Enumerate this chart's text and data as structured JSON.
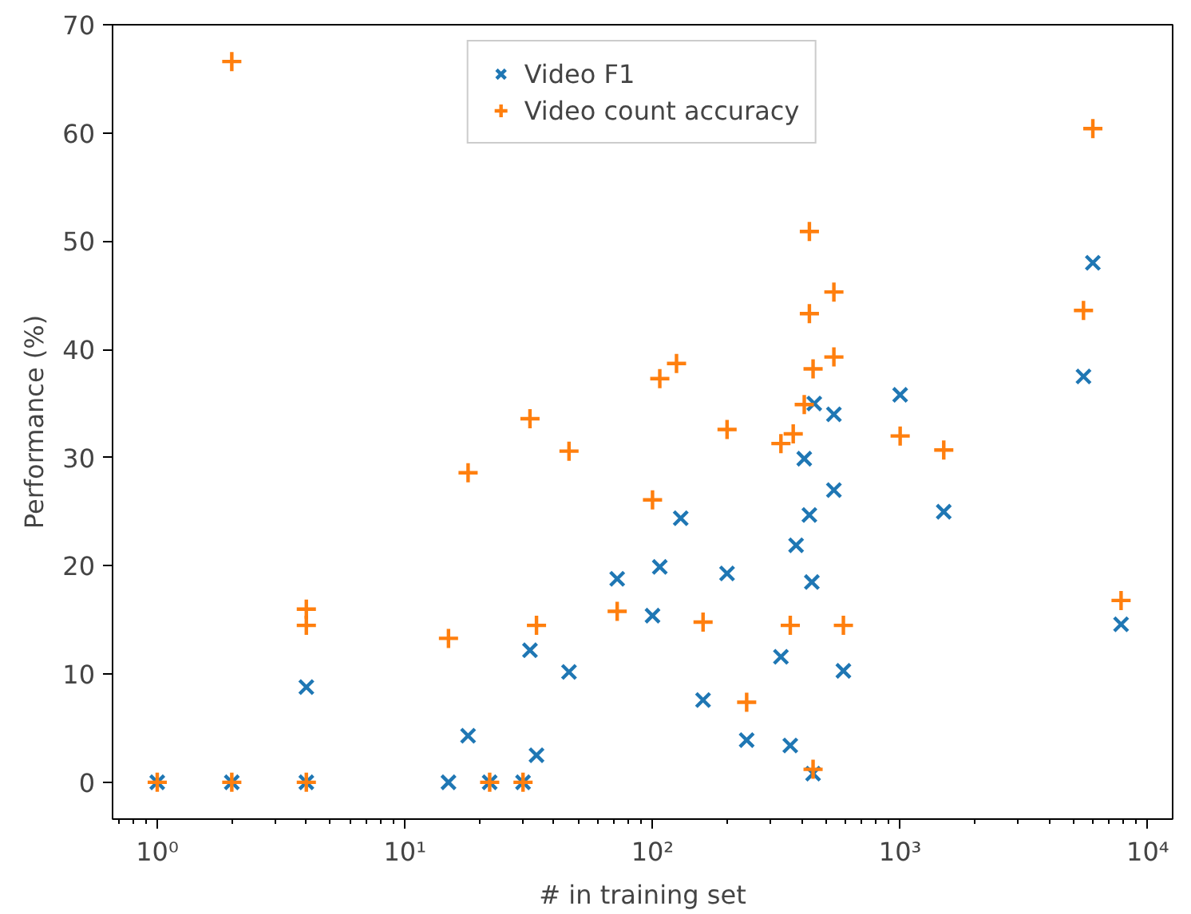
{
  "chart_data": {
    "type": "scatter",
    "xlabel": "# in training set",
    "ylabel": "Performance (%)",
    "log": "x",
    "grid": false,
    "legend": "top",
    "xlim": [
      0.66,
      12600
    ],
    "ylim": [
      -3.4,
      70
    ],
    "xticks": [
      {
        "value": 1,
        "label": "10⁰"
      },
      {
        "value": 10,
        "label": "10¹"
      },
      {
        "value": 100,
        "label": "10²"
      },
      {
        "value": 1000,
        "label": "10³"
      },
      {
        "value": 10000,
        "label": "10⁴"
      }
    ],
    "yticks": [
      0,
      10,
      20,
      30,
      40,
      50,
      60,
      70
    ],
    "series": [
      {
        "name": "Video F1",
        "color": "#1f77b4",
        "marker": "x",
        "x": [
          1,
          2,
          4,
          4,
          15,
          18,
          22,
          30,
          32,
          34,
          46,
          72,
          100,
          107,
          130,
          160,
          200,
          240,
          330,
          360,
          380,
          410,
          430,
          440,
          445,
          450,
          540,
          540,
          590,
          1000,
          1500,
          5500,
          6000,
          7800
        ],
        "values": [
          0,
          0,
          0,
          8.8,
          0,
          4.3,
          0,
          0,
          12.2,
          2.5,
          10.2,
          18.8,
          15.4,
          19.9,
          24.4,
          7.6,
          19.3,
          3.9,
          11.6,
          3.4,
          21.9,
          29.9,
          24.7,
          18.5,
          0.8,
          35,
          27,
          34,
          10.3,
          35.8,
          25,
          37.5,
          48,
          14.6
        ]
      },
      {
        "name": "Video count accuracy",
        "color": "#ff7f0e",
        "marker": "cross",
        "x": [
          1,
          2,
          2,
          4,
          4,
          4,
          15,
          18,
          22,
          30,
          32,
          34,
          46,
          72,
          100,
          107,
          125,
          160,
          200,
          240,
          330,
          360,
          370,
          410,
          430,
          430,
          445,
          445,
          540,
          540,
          590,
          1000,
          1500,
          5500,
          6000,
          7800
        ],
        "values": [
          0,
          0,
          66.6,
          0,
          14.5,
          16,
          13.3,
          28.6,
          0,
          0,
          33.6,
          14.5,
          30.6,
          15.8,
          26.1,
          37.3,
          38.7,
          14.8,
          32.6,
          7.4,
          31.3,
          14.5,
          32.2,
          34.9,
          43.3,
          50.9,
          38.2,
          1.2,
          45.3,
          39.3,
          14.5,
          32,
          30.7,
          43.6,
          60.4,
          16.8
        ]
      }
    ]
  }
}
